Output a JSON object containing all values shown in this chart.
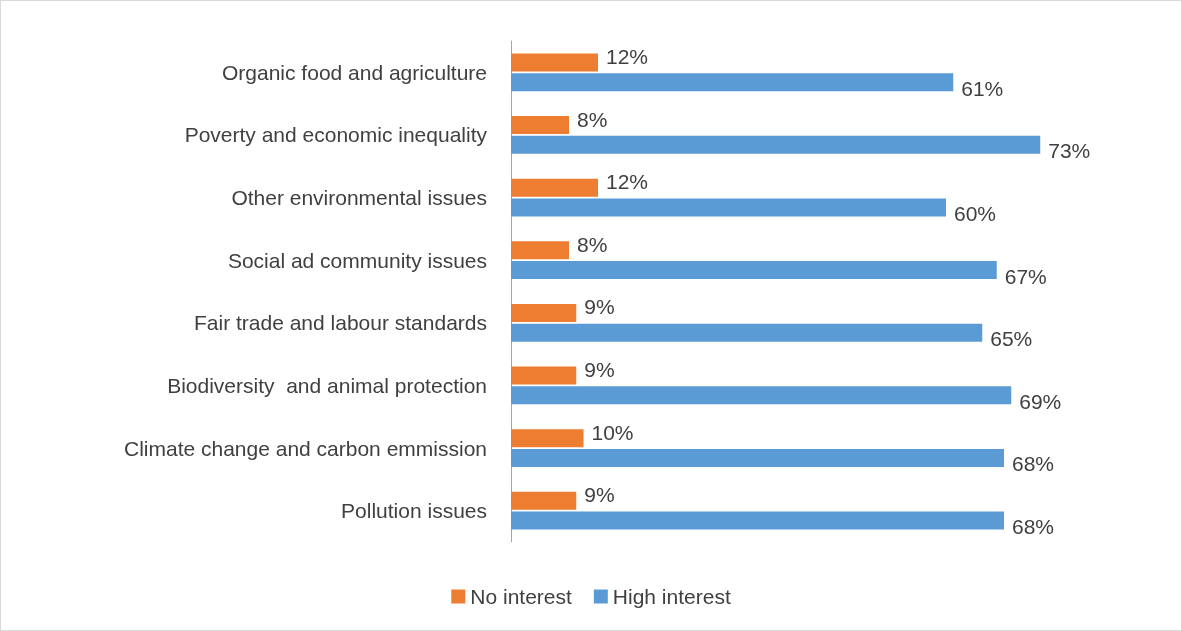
{
  "chart_data": {
    "type": "bar",
    "orientation": "horizontal",
    "categories": [
      "Organic food and agriculture",
      "Poverty and economic inequality",
      "Other environmental issues",
      "Social ad community issues",
      "Fair trade and labour standards",
      "Biodiversity  and animal protection",
      "Climate change and carbon emmission",
      "Pollution issues"
    ],
    "series": [
      {
        "name": "No interest",
        "color": "#ed7d31",
        "values": [
          12,
          8,
          12,
          8,
          9,
          9,
          10,
          9
        ],
        "value_labels": [
          "12%",
          "8%",
          "12%",
          "8%",
          "9%",
          "9%",
          "10%",
          "9%"
        ]
      },
      {
        "name": "High interest",
        "color": "#5b9bd5",
        "values": [
          61,
          73,
          60,
          67,
          65,
          69,
          68,
          68
        ],
        "value_labels": [
          "61%",
          "73%",
          "60%",
          "67%",
          "65%",
          "69%",
          "68%",
          "68%"
        ]
      }
    ],
    "legend": "bottom"
  }
}
